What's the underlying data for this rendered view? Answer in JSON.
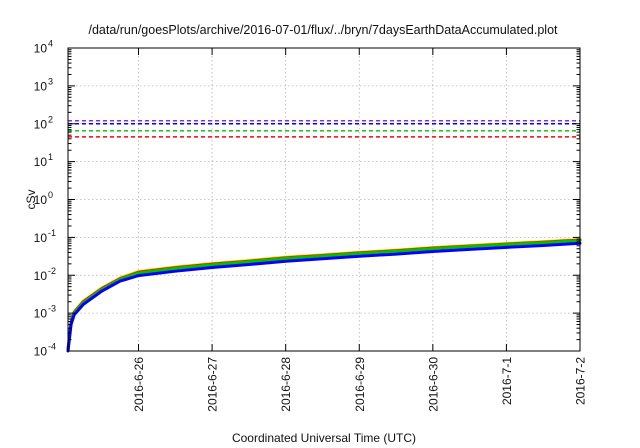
{
  "chart_data": {
    "type": "line",
    "title": "/data/run/goesPlots/archive/2016-07-01/flux/../bryn/7daysEarthDataAccumulated.plot",
    "xlabel": "Coordinated Universal Time (UTC)",
    "ylabel": "cSv",
    "yscale": "log",
    "ylim": [
      0.0001,
      10000
    ],
    "y_ticks": [
      {
        "value": 0.0001,
        "base": "10",
        "exp": "-4"
      },
      {
        "value": 0.001,
        "base": "10",
        "exp": "-3"
      },
      {
        "value": 0.01,
        "base": "10",
        "exp": "-2"
      },
      {
        "value": 0.1,
        "base": "10",
        "exp": "-1"
      },
      {
        "value": 1,
        "base": "10",
        "exp": "0"
      },
      {
        "value": 10,
        "base": "10",
        "exp": "1"
      },
      {
        "value": 100,
        "base": "10",
        "exp": "2"
      },
      {
        "value": 1000,
        "base": "10",
        "exp": "3"
      },
      {
        "value": 10000,
        "base": "10",
        "exp": "4"
      }
    ],
    "xlim": [
      "2016-06-25T01:00",
      "2016-07-02T00:00"
    ],
    "x_ticks": [
      "2016-6-26",
      "2016-6-27",
      "2016-6-28",
      "2016-6-29",
      "2016-6-30",
      "2016-7-1",
      "2016-7-2"
    ],
    "grid": true,
    "reference_lines": [
      {
        "y": 120,
        "color": "#8a2be2",
        "style": "dashed"
      },
      {
        "y": 100,
        "color": "#0000ff",
        "style": "dashed"
      },
      {
        "y": 65,
        "color": "#00c000",
        "style": "dashed"
      },
      {
        "y": 45,
        "color": "#ff0000",
        "style": "dashed"
      }
    ],
    "series": [
      {
        "color": "#ffd400",
        "x": [
          "2016-06-25T01:00",
          "2016-06-25T02:00",
          "2016-06-25T03:00",
          "2016-06-25T06:00",
          "2016-06-25T12:00",
          "2016-06-25T18:00",
          "2016-06-26T00:00",
          "2016-06-26T12:00",
          "2016-06-27T00:00",
          "2016-06-27T12:00",
          "2016-06-28T00:00",
          "2016-06-28T12:00",
          "2016-06-29T00:00",
          "2016-06-29T12:00",
          "2016-06-30T00:00",
          "2016-06-30T12:00",
          "2016-07-01T00:00",
          "2016-07-01T12:00",
          "2016-07-02T00:00"
        ],
        "y": [
          0.00012,
          0.0006,
          0.0011,
          0.0021,
          0.0046,
          0.0085,
          0.0126,
          0.0165,
          0.0205,
          0.0245,
          0.03,
          0.0345,
          0.0405,
          0.046,
          0.054,
          0.061,
          0.069,
          0.077,
          0.088
        ]
      },
      {
        "color": "#ff0000",
        "x": [
          "2016-06-25T01:00",
          "2016-06-25T02:00",
          "2016-06-25T03:00",
          "2016-06-25T06:00",
          "2016-06-25T12:00",
          "2016-06-25T18:00",
          "2016-06-26T00:00",
          "2016-06-26T12:00",
          "2016-06-27T00:00",
          "2016-06-27T12:00",
          "2016-06-28T00:00",
          "2016-06-28T12:00",
          "2016-06-29T00:00",
          "2016-06-29T12:00",
          "2016-06-30T00:00",
          "2016-06-30T12:00",
          "2016-07-01T00:00",
          "2016-07-01T12:00",
          "2016-07-02T00:00"
        ],
        "y": [
          0.00011,
          0.00058,
          0.00105,
          0.002,
          0.0044,
          0.0081,
          0.012,
          0.0158,
          0.0196,
          0.0235,
          0.0288,
          0.0332,
          0.039,
          0.0444,
          0.052,
          0.0588,
          0.0665,
          0.0743,
          0.085
        ]
      },
      {
        "color": "#00c000",
        "x": [
          "2016-06-25T01:00",
          "2016-06-25T02:00",
          "2016-06-25T03:00",
          "2016-06-25T06:00",
          "2016-06-25T12:00",
          "2016-06-25T18:00",
          "2016-06-26T00:00",
          "2016-06-26T12:00",
          "2016-06-27T00:00",
          "2016-06-27T12:00",
          "2016-06-28T00:00",
          "2016-06-28T12:00",
          "2016-06-29T00:00",
          "2016-06-29T12:00",
          "2016-06-30T00:00",
          "2016-06-30T12:00",
          "2016-07-01T00:00",
          "2016-07-01T12:00",
          "2016-07-02T00:00"
        ],
        "y": [
          0.000105,
          0.00056,
          0.001,
          0.0019,
          0.0042,
          0.0078,
          0.0115,
          0.0152,
          0.0189,
          0.0227,
          0.0279,
          0.0322,
          0.0378,
          0.0431,
          0.0505,
          0.0572,
          0.0648,
          0.0724,
          0.083
        ]
      },
      {
        "color": "#0000ff",
        "x": [
          "2016-06-25T01:00",
          "2016-06-25T02:00",
          "2016-06-25T03:00",
          "2016-06-25T06:00",
          "2016-06-25T12:00",
          "2016-06-25T18:00",
          "2016-06-26T00:00",
          "2016-06-26T12:00",
          "2016-06-27T00:00",
          "2016-06-27T12:00",
          "2016-06-28T00:00",
          "2016-06-28T12:00",
          "2016-06-29T00:00",
          "2016-06-29T12:00",
          "2016-06-30T00:00",
          "2016-06-30T12:00",
          "2016-07-01T00:00",
          "2016-07-01T12:00",
          "2016-07-02T00:00"
        ],
        "y": [
          0.0001,
          0.0005,
          0.0009,
          0.0017,
          0.0038,
          0.007,
          0.0098,
          0.0128,
          0.016,
          0.0192,
          0.0235,
          0.0272,
          0.0318,
          0.0362,
          0.0425,
          0.0482,
          0.0545,
          0.061,
          0.07
        ]
      }
    ]
  }
}
